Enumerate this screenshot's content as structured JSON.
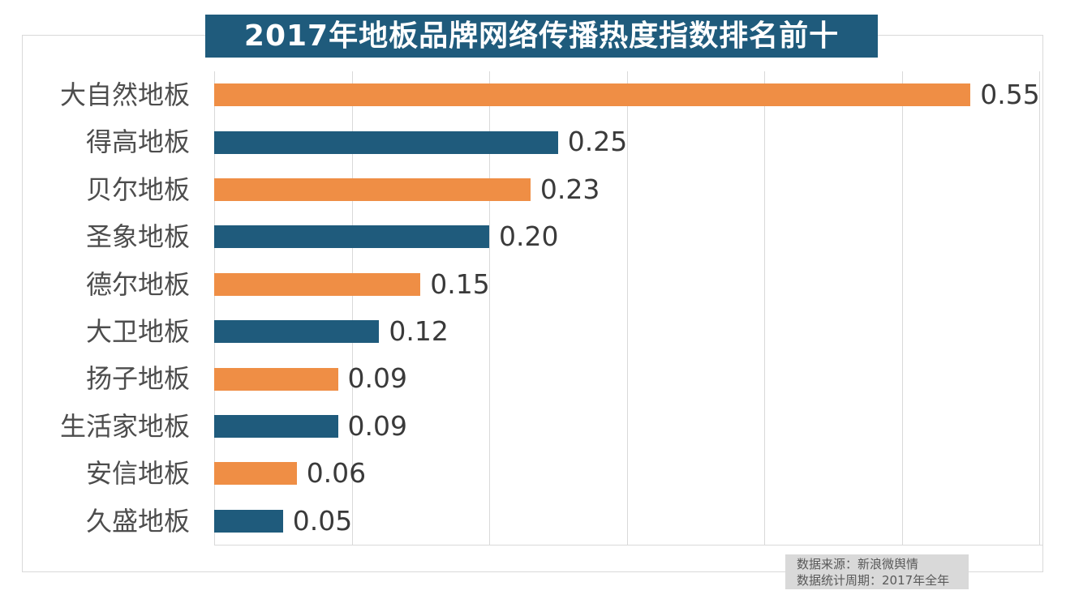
{
  "title": "2017年地板品牌网络传播热度指数排名前十",
  "footer": {
    "line1": "数据来源：新浪微舆情",
    "line2": "数据统计周期：2017年全年"
  },
  "colors": {
    "orange": "#ef8e45",
    "teal": "#1f5b7c",
    "title_bg": "#1f5b7c",
    "title_text": "#ffffff",
    "grid": "#d9d9d9",
    "category_label": "#4d4d4d",
    "value_label": "#3a3a3a",
    "footer_bg": "#d9d9d9",
    "footer_text": "#595959"
  },
  "chart_data": {
    "type": "bar",
    "orientation": "horizontal",
    "title": "2017年地板品牌网络传播热度指数排名前十",
    "categories": [
      "大自然地板",
      "得高地板",
      "贝尔地板",
      "圣象地板",
      "德尔地板",
      "大卫地板",
      "扬子地板",
      "生活家地板",
      "安信地板",
      "久盛地板"
    ],
    "values": [
      0.55,
      0.25,
      0.23,
      0.2,
      0.15,
      0.12,
      0.09,
      0.09,
      0.06,
      0.05
    ],
    "value_labels": [
      "0.55",
      "0.25",
      "0.23",
      "0.20",
      "0.15",
      "0.12",
      "0.09",
      "0.09",
      "0.06",
      "0.05"
    ],
    "bar_color_pattern": [
      "#ef8e45",
      "#1f5b7c"
    ],
    "xlim": [
      0,
      0.6
    ],
    "grid_step": 0.1,
    "grid": true,
    "legend": false,
    "xlabel": "",
    "ylabel": "",
    "source": "数据来源：新浪微舆情",
    "period": "数据统计周期：2017年全年"
  }
}
